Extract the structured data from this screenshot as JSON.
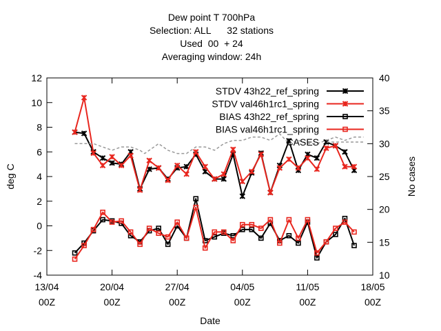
{
  "chart_data": {
    "type": "line",
    "title_lines": [
      "Dew point T 700hPa",
      "Selection: ALL      32 stations",
      "Used  00  + 24",
      "Averaging window: 24h"
    ],
    "xlabel": "Date",
    "ylabel": "deg C",
    "y2label": "No cases",
    "xlim": [
      0,
      35
    ],
    "ylim": [
      -4,
      12
    ],
    "y2lim": [
      10,
      40
    ],
    "x_ticks": [
      {
        "value": 0,
        "line1": "13/04",
        "line2": "00Z"
      },
      {
        "value": 7,
        "line1": "20/04",
        "line2": "00Z"
      },
      {
        "value": 14,
        "line1": "27/04",
        "line2": "00Z"
      },
      {
        "value": 21,
        "line1": "04/05",
        "line2": "00Z"
      },
      {
        "value": 28,
        "line1": "11/05",
        "line2": "00Z"
      },
      {
        "value": 35,
        "line1": "18/05",
        "line2": "00Z"
      }
    ],
    "y_ticks": [
      -4,
      -2,
      0,
      2,
      4,
      6,
      8,
      10,
      12
    ],
    "y2_ticks": [
      10,
      15,
      20,
      25,
      30,
      35,
      40
    ],
    "x": [
      3,
      4,
      5,
      6,
      7,
      8,
      9,
      10,
      11,
      12,
      13,
      14,
      15,
      16,
      17,
      18,
      19,
      20,
      21,
      22,
      23,
      24,
      25,
      26,
      27,
      28,
      29,
      30,
      31,
      32,
      33
    ],
    "series": [
      {
        "name": "STDV 43h22_ref_spring",
        "axis": "y",
        "color": "#000000",
        "marker": "x",
        "values": [
          7.6,
          7.5,
          6.0,
          5.5,
          5.1,
          5.0,
          6.0,
          3.0,
          4.6,
          4.7,
          3.8,
          4.7,
          4.8,
          5.8,
          4.4,
          3.8,
          3.8,
          5.8,
          2.4,
          4.3,
          5.9,
          2.7,
          4.9,
          6.9,
          4.5,
          5.8,
          5.5,
          6.8,
          6.5,
          6.0,
          4.5
        ]
      },
      {
        "name": "STDV val46h1rc1_spring",
        "axis": "y",
        "color": "#e8261e",
        "marker": "x",
        "values": [
          7.6,
          10.4,
          5.9,
          4.9,
          5.6,
          4.9,
          5.7,
          2.9,
          5.3,
          4.7,
          3.7,
          4.9,
          4.2,
          6.0,
          4.8,
          3.8,
          4.2,
          6.2,
          3.6,
          4.4,
          5.8,
          2.7,
          4.7,
          5.4,
          4.7,
          5.5,
          4.6,
          6.3,
          6.5,
          4.8,
          4.8
        ]
      },
      {
        "name": "BIAS 43h22_ref_spring",
        "axis": "y",
        "color": "#000000",
        "marker": "square",
        "values": [
          -2.2,
          -1.4,
          -0.4,
          0.5,
          0.4,
          0.2,
          -0.8,
          -1.3,
          -0.4,
          -0.2,
          -1.5,
          0.0,
          -1.0,
          2.2,
          -1.2,
          -0.9,
          -0.6,
          -0.8,
          -0.3,
          -0.3,
          -1.0,
          0.2,
          -1.2,
          -0.8,
          -1.4,
          0.3,
          -2.6,
          -1.3,
          -0.7,
          0.6,
          -1.6
        ]
      },
      {
        "name": "BIAS val46h1rc1_spring",
        "axis": "y",
        "color": "#e8261e",
        "marker": "square",
        "values": [
          -2.7,
          -1.6,
          -0.3,
          1.1,
          0.3,
          0.4,
          -0.5,
          -1.5,
          -0.2,
          -0.6,
          -0.9,
          0.3,
          -1.0,
          1.5,
          -1.8,
          -0.5,
          -0.5,
          -1.2,
          0.1,
          0.1,
          -0.2,
          0.5,
          -1.4,
          0.5,
          -1.0,
          0.5,
          -2.2,
          -1.3,
          -0.2,
          0.3,
          -0.5
        ]
      },
      {
        "name": "CASES",
        "axis": "y2",
        "color": "#999999",
        "dashed": true,
        "x": [
          3,
          4,
          5,
          6,
          7,
          8,
          9,
          10,
          10.5,
          11,
          12,
          13,
          14,
          15,
          16,
          17,
          18,
          19,
          20,
          21,
          22,
          23,
          24,
          25,
          26,
          27,
          28,
          29,
          30,
          31,
          32,
          33,
          34
        ],
        "values": [
          30,
          30,
          30,
          29.5,
          29,
          29.5,
          29.5,
          29,
          28.5,
          29,
          30,
          29,
          28.5,
          28.5,
          29.5,
          29.5,
          29,
          30,
          30.5,
          30.5,
          31,
          31,
          30.5,
          31.5,
          30,
          30.5,
          30,
          30,
          30.5,
          31,
          30.5,
          31,
          31
        ]
      }
    ],
    "legend_placement": "top-right",
    "grid": false
  }
}
